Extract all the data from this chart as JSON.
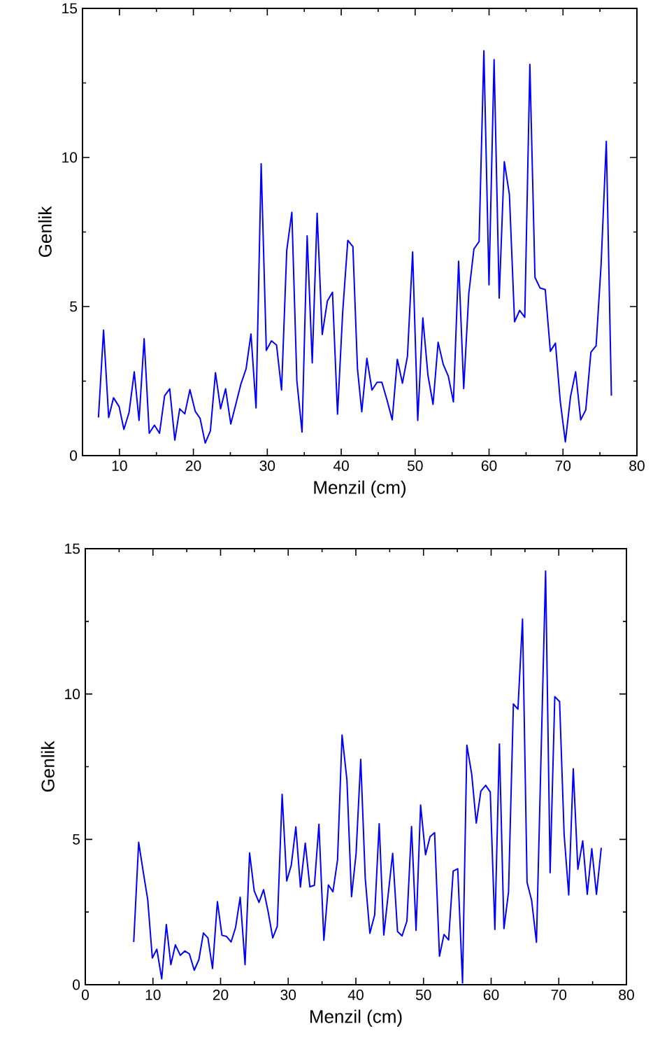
{
  "chart_data": [
    {
      "type": "line",
      "xlabel": "Menzil (cm)",
      "ylabel": "Genlik",
      "xlim": [
        5,
        80
      ],
      "ylim": [
        0,
        15
      ],
      "xticks": [
        10,
        {
          "value": 15,
          "label": null
        },
        20,
        {
          "value": 25,
          "label": null
        },
        30,
        {
          "value": 35,
          "label": null
        },
        40,
        {
          "value": 45,
          "label": null
        },
        50,
        {
          "value": 55,
          "label": null
        },
        60,
        {
          "value": 65,
          "label": null
        },
        70,
        {
          "value": 75,
          "label": null
        },
        80
      ],
      "yticks": [
        0,
        {
          "value": 2.5,
          "label": null
        },
        5,
        {
          "value": 7.5,
          "label": null
        },
        10,
        {
          "value": 12.5,
          "label": null
        },
        15
      ],
      "series": [
        {
          "color": "#0000ff",
          "x": [
            7.16,
            7.85,
            8.54,
            9.2,
            9.96,
            10.6,
            11.3,
            12.0,
            12.65,
            13.34,
            14.03,
            14.73,
            15.42,
            16.11,
            16.8,
            17.49,
            18.15,
            18.84,
            19.53,
            20.26,
            20.91,
            21.6,
            22.3,
            22.99,
            23.68,
            24.36,
            25.06,
            25.75,
            26.44,
            27.13,
            27.79,
            28.48,
            29.17,
            29.87,
            30.56,
            31.25,
            31.93,
            32.63,
            33.32,
            34.0,
            34.7,
            35.39,
            36.08,
            36.74,
            37.43,
            38.13,
            38.82,
            39.5,
            40.2,
            40.89,
            41.58,
            42.2,
            42.78,
            43.47,
            44.16,
            44.85,
            45.5,
            46.2,
            46.9,
            47.59,
            48.28,
            48.96,
            49.66,
            50.35,
            51.04,
            51.73,
            52.42,
            53.11,
            53.8,
            54.49,
            55.18,
            55.88,
            56.57,
            57.26,
            57.95,
            58.65,
            59.3,
            59.99,
            60.68,
            61.37,
            62.06,
            62.75,
            63.45,
            64.14,
            64.83,
            65.52,
            66.21,
            66.9,
            67.6,
            68.29,
            68.98,
            69.63,
            70.32,
            71.02,
            71.71,
            72.4,
            73.08,
            73.78,
            74.48,
            75.16,
            75.86,
            76.55
          ],
          "values": [
            1.28,
            4.21,
            1.28,
            1.94,
            1.64,
            0.88,
            1.45,
            2.81,
            1.18,
            3.92,
            0.75,
            1.02,
            0.75,
            2.01,
            2.24,
            0.52,
            1.57,
            1.4,
            2.21,
            1.48,
            1.25,
            0.42,
            0.83,
            2.78,
            1.57,
            2.24,
            1.06,
            1.73,
            2.41,
            2.91,
            4.08,
            1.6,
            9.79,
            3.53,
            3.85,
            3.71,
            2.2,
            6.88,
            8.16,
            2.51,
            0.79,
            7.37,
            3.11,
            8.13,
            4.06,
            5.19,
            5.48,
            1.39,
            4.82,
            7.22,
            7.01,
            2.91,
            1.47,
            3.26,
            2.2,
            2.46,
            2.46,
            1.86,
            1.2,
            3.23,
            2.43,
            3.33,
            6.83,
            1.18,
            4.62,
            2.7,
            1.72,
            3.8,
            3.06,
            2.66,
            1.8,
            6.52,
            2.25,
            5.44,
            6.93,
            7.18,
            13.58,
            5.73,
            13.28,
            5.28,
            9.86,
            8.76,
            4.49,
            4.87,
            4.64,
            13.12,
            5.98,
            5.62,
            5.57,
            3.5,
            3.77,
            1.82,
            0.46,
            1.98,
            2.81,
            1.2,
            1.53,
            3.47,
            3.68,
            6.43,
            10.54,
            2.01
          ]
        }
      ]
    },
    {
      "type": "line",
      "xlabel": "Menzil (cm)",
      "ylabel": "Genlik",
      "xlim": [
        0,
        80
      ],
      "ylim": [
        0,
        15
      ],
      "xticks": [
        0,
        {
          "value": 5,
          "label": null
        },
        10,
        {
          "value": 15,
          "label": null
        },
        20,
        {
          "value": 25,
          "label": null
        },
        30,
        {
          "value": 35,
          "label": null
        },
        40,
        {
          "value": 45,
          "label": null
        },
        50,
        {
          "value": 55,
          "label": null
        },
        60,
        {
          "value": 65,
          "label": null
        },
        70,
        {
          "value": 75,
          "label": null
        },
        80
      ],
      "yticks": [
        0,
        {
          "value": 2.5,
          "label": null
        },
        5,
        {
          "value": 7.5,
          "label": null
        },
        10,
        {
          "value": 12.5,
          "label": null
        },
        15
      ],
      "series": [
        {
          "color": "#0000ff",
          "x": [
            7.16,
            7.89,
            8.56,
            9.23,
            9.91,
            10.58,
            11.3,
            11.98,
            12.65,
            13.32,
            14.05,
            14.72,
            15.39,
            16.11,
            16.79,
            17.46,
            18.13,
            18.81,
            19.53,
            20.2,
            20.88,
            21.55,
            22.22,
            22.9,
            23.62,
            24.29,
            24.97,
            25.68,
            26.36,
            27.04,
            27.71,
            28.38,
            29.1,
            29.78,
            30.45,
            31.13,
            31.8,
            32.52,
            33.2,
            33.87,
            34.54,
            35.27,
            35.94,
            36.61,
            37.29,
            37.96,
            38.68,
            39.36,
            40.03,
            40.72,
            41.39,
            42.07,
            42.78,
            43.45,
            44.13,
            45.44,
            46.16,
            46.83,
            47.55,
            48.23,
            48.9,
            49.57,
            50.3,
            50.97,
            51.64,
            52.36,
            53.03,
            53.71,
            54.39,
            55.06,
            55.77,
            56.41,
            57.13,
            57.8,
            58.48,
            59.19,
            59.87,
            60.55,
            61.22,
            61.89,
            62.57,
            63.29,
            63.96,
            64.64,
            65.31,
            65.98,
            66.7,
            68.05,
            68.72,
            69.41,
            70.12,
            70.79,
            71.47,
            72.14,
            72.82,
            73.54,
            74.21,
            74.88,
            75.57,
            76.28
          ],
          "values": [
            1.47,
            4.9,
            3.89,
            2.93,
            0.92,
            1.22,
            0.2,
            2.07,
            0.69,
            1.37,
            1.01,
            1.16,
            1.06,
            0.5,
            0.86,
            1.78,
            1.61,
            0.56,
            2.86,
            1.7,
            1.66,
            1.47,
            1.97,
            3.01,
            0.69,
            4.53,
            3.23,
            2.83,
            3.27,
            2.5,
            1.61,
            2.01,
            6.55,
            3.57,
            4.11,
            5.43,
            3.36,
            4.87,
            3.37,
            3.42,
            5.52,
            1.53,
            3.43,
            3.2,
            4.29,
            8.59,
            7.04,
            3.03,
            4.5,
            7.75,
            3.65,
            1.77,
            2.4,
            5.54,
            1.71,
            4.52,
            1.83,
            1.68,
            2.19,
            5.44,
            1.87,
            6.18,
            4.47,
            5.09,
            5.23,
            0.98,
            1.73,
            1.54,
            3.91,
            3.99,
            0.06,
            8.24,
            7.24,
            5.56,
            6.66,
            6.86,
            6.63,
            1.9,
            8.28,
            1.93,
            3.19,
            9.66,
            9.48,
            12.58,
            3.52,
            2.91,
            1.46,
            14.23,
            3.85,
            9.91,
            9.74,
            5.17,
            3.09,
            7.43,
            3.97,
            4.95,
            3.11,
            4.68,
            3.11,
            4.71
          ]
        }
      ]
    }
  ]
}
